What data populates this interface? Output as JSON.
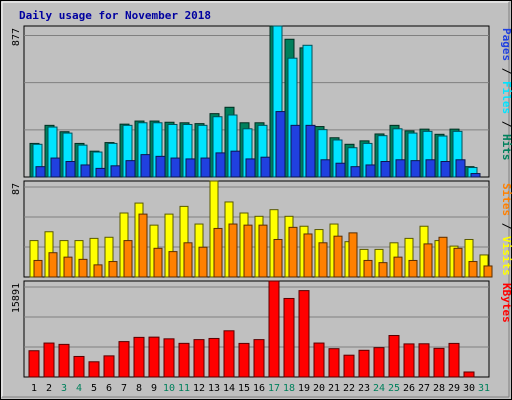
{
  "chart_data": {
    "type": "bar",
    "title": "Daily usage for November 2018",
    "days": [
      "1",
      "2",
      "3",
      "4",
      "5",
      "6",
      "7",
      "8",
      "9",
      "10",
      "11",
      "12",
      "13",
      "14",
      "15",
      "16",
      "17",
      "18",
      "19",
      "20",
      "21",
      "22",
      "23",
      "24",
      "25",
      "26",
      "27",
      "28",
      "29",
      "30",
      "31"
    ],
    "weekend_days": [
      "3",
      "4",
      "10",
      "11",
      "17",
      "18",
      "24",
      "25",
      "31"
    ],
    "panels": [
      {
        "key": "hits",
        "max_label": "877",
        "ymax": 877,
        "right_label": [
          "Pages",
          "Files",
          "Hits"
        ],
        "series": [
          {
            "name": "Hits",
            "color": "#00805c",
            "values": [
              195,
              300,
              263,
              195,
              150,
              200,
              307,
              325,
              325,
              318,
              315,
              310,
              368,
              405,
              315,
              315,
              877,
              800,
              750,
              293,
              228,
              190,
              210,
              250,
              300,
              268,
              278,
              248,
              278,
              60,
              0
            ]
          },
          {
            "name": "Files",
            "color": "#00e4ff",
            "values": [
              190,
              290,
              255,
              185,
              145,
              195,
              300,
              315,
              315,
              305,
              305,
              300,
              350,
              360,
              280,
              300,
              877,
              690,
              765,
              275,
              215,
              170,
              195,
              240,
              280,
              255,
              265,
              238,
              265,
              55,
              0
            ]
          },
          {
            "name": "Pages",
            "color": "#2040e0",
            "values": [
              60,
              110,
              90,
              70,
              50,
              65,
              95,
              130,
              120,
              110,
              105,
              110,
              140,
              150,
              105,
              115,
              380,
              300,
              300,
              100,
              80,
              60,
              70,
              90,
              100,
              95,
              100,
              90,
              100,
              20,
              0
            ]
          }
        ]
      },
      {
        "key": "visits",
        "max_label": "87",
        "ymax": 87,
        "right_label": [
          "Sites",
          "Visits"
        ],
        "series": [
          {
            "name": "Visits",
            "color": "#ffff00",
            "values": [
              33,
              41,
              33,
              33,
              35,
              36,
              58,
              67,
              47,
              57,
              64,
              48,
              87,
              68,
              58,
              55,
              61,
              55,
              46,
              43,
              48,
              32,
              25,
              25,
              31,
              35,
              46,
              33,
              28,
              34,
              20
            ]
          },
          {
            "name": "Sites",
            "color": "#ff8000",
            "values": [
              15,
              22,
              18,
              16,
              11,
              14,
              33,
              57,
              26,
              23,
              31,
              27,
              44,
              48,
              47,
              47,
              34,
              45,
              39,
              31,
              37,
              40,
              15,
              13,
              18,
              15,
              30,
              36,
              26,
              14,
              10
            ]
          }
        ]
      },
      {
        "key": "kbytes",
        "max_label": "15891",
        "ymax": 15891,
        "right_label": [
          "KBytes"
        ],
        "series": [
          {
            "name": "KBytes",
            "color": "#ff0000",
            "values": [
              4350,
              5620,
              5400,
              3400,
              2520,
              3500,
              5860,
              6560,
              6600,
              6320,
              5570,
              6190,
              6380,
              7650,
              5560,
              6190,
              15891,
              13000,
              14300,
              5620,
              4690,
              3610,
              4420,
              4860,
              6870,
              5480,
              5500,
              4740,
              5560,
              830,
              0
            ]
          }
        ]
      }
    ]
  }
}
